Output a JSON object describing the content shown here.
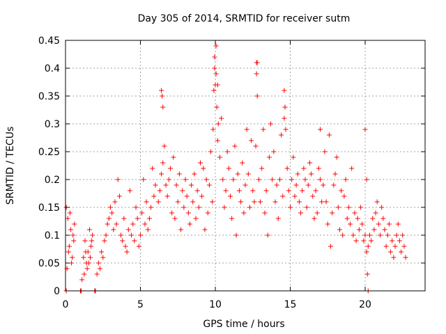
{
  "chart_data": {
    "type": "scatter",
    "title": "Day 305 of 2014, SRMTID for receiver sutm",
    "xlabel": "GPS time / hours",
    "ylabel": "SRMTID / TECUs",
    "xlim": [
      0,
      24
    ],
    "ylim": [
      0,
      0.45
    ],
    "xticks": [
      0,
      5,
      10,
      15,
      20
    ],
    "yticks": [
      0,
      0.05,
      0.1,
      0.15,
      0.2,
      0.25,
      0.3,
      0.35,
      0.4,
      0.45
    ],
    "xtick_labels": [
      "0",
      "5",
      "10",
      "15",
      "20"
    ],
    "ytick_labels": [
      "0",
      "0.05",
      "0.1",
      "0.15",
      "0.2",
      "0.25",
      "0.3",
      "0.35",
      "0.4",
      "0.45"
    ],
    "grid": true,
    "marker": "+",
    "marker_color": "#ff0000",
    "grid_color": "#a0a0a0",
    "series": [
      {
        "name": "SRMTID",
        "x": [
          0.05,
          0.15,
          0.25,
          0.35,
          0.45,
          0.55,
          0.1,
          0.3,
          0.5,
          0.6,
          0.2,
          0.4,
          1.1,
          1.2,
          1.3,
          1.4,
          1.5,
          1.6,
          1.7,
          1.8,
          1.25,
          1.45,
          1.65,
          1.75,
          1.35,
          1.55,
          2.1,
          2.2,
          2.3,
          2.4,
          2.5,
          2.6,
          2.7,
          2.8,
          2.9,
          3.0,
          3.1,
          3.2,
          3.3,
          3.4,
          3.5,
          3.6,
          3.7,
          3.8,
          3.9,
          4.0,
          4.1,
          4.2,
          4.3,
          4.4,
          4.5,
          4.6,
          4.7,
          4.8,
          4.9,
          5.0,
          5.1,
          5.2,
          5.3,
          5.4,
          5.5,
          5.6,
          5.7,
          5.8,
          5.9,
          6.0,
          6.2,
          6.3,
          6.4,
          6.5,
          6.6,
          6.7,
          6.8,
          6.9,
          7.0,
          7.1,
          7.2,
          7.3,
          7.4,
          7.5,
          7.6,
          7.7,
          7.8,
          7.9,
          8.0,
          8.1,
          8.2,
          8.3,
          8.4,
          8.5,
          8.6,
          8.7,
          8.8,
          8.9,
          9.0,
          9.1,
          9.2,
          9.3,
          9.4,
          9.5,
          9.6,
          9.7,
          9.8,
          9.85,
          9.9,
          9.95,
          10.0,
          10.05,
          10.1,
          10.15,
          10.2,
          10.3,
          10.4,
          10.5,
          10.6,
          10.7,
          10.8,
          10.9,
          11.0,
          11.1,
          11.2,
          11.3,
          11.4,
          11.5,
          11.6,
          11.7,
          11.8,
          11.9,
          12.0,
          12.1,
          12.2,
          12.3,
          12.4,
          12.5,
          12.6,
          12.7,
          12.75,
          12.8,
          12.9,
          13.0,
          13.1,
          13.2,
          13.3,
          13.4,
          13.5,
          13.6,
          13.7,
          13.8,
          13.9,
          14.0,
          14.1,
          14.2,
          14.3,
          14.4,
          14.5,
          14.6,
          14.65,
          14.7,
          14.8,
          14.9,
          15.0,
          15.1,
          15.2,
          15.3,
          15.4,
          15.5,
          15.6,
          15.7,
          15.8,
          15.9,
          16.0,
          16.1,
          16.2,
          16.3,
          16.4,
          16.5,
          16.6,
          16.7,
          16.8,
          16.9,
          17.0,
          17.1,
          17.2,
          17.3,
          17.4,
          17.5,
          17.6,
          17.7,
          17.8,
          17.9,
          18.0,
          18.1,
          18.2,
          18.3,
          18.4,
          18.5,
          18.6,
          18.7,
          18.8,
          18.9,
          19.0,
          19.1,
          19.2,
          19.3,
          19.4,
          19.5,
          19.6,
          19.7,
          19.8,
          19.9,
          20.0,
          20.1,
          20.2,
          20.3,
          20.4,
          20.5,
          20.6,
          20.7,
          20.8,
          20.9,
          21.0,
          21.1,
          21.2,
          21.3,
          21.4,
          21.5,
          21.6,
          21.7,
          21.8,
          21.9,
          22.0,
          22.1,
          22.2,
          22.3,
          22.4,
          22.5,
          22.6,
          22.7,
          6.4,
          6.5,
          6.45,
          9.95,
          10.05,
          10.15,
          12.75,
          12.8,
          14.6,
          14.65,
          17.0,
          20.0,
          20.1,
          20.15,
          20.2,
          0.05,
          1.0,
          1.05,
          1.95,
          2.0
        ],
        "y": [
          0.15,
          0.13,
          0.08,
          0.11,
          0.06,
          0.09,
          0.04,
          0.14,
          0.1,
          0.12,
          0.07,
          0.05,
          0.02,
          0.06,
          0.09,
          0.05,
          0.07,
          0.11,
          0.08,
          0.1,
          0.03,
          0.04,
          0.06,
          0.09,
          0.07,
          0.05,
          0.03,
          0.05,
          0.04,
          0.07,
          0.06,
          0.09,
          0.1,
          0.12,
          0.13,
          0.15,
          0.14,
          0.11,
          0.16,
          0.12,
          0.2,
          0.17,
          0.1,
          0.09,
          0.13,
          0.08,
          0.07,
          0.11,
          0.18,
          0.1,
          0.12,
          0.09,
          0.15,
          0.13,
          0.08,
          0.1,
          0.14,
          0.2,
          0.12,
          0.16,
          0.11,
          0.13,
          0.15,
          0.22,
          0.17,
          0.19,
          0.16,
          0.18,
          0.21,
          0.23,
          0.26,
          0.19,
          0.17,
          0.2,
          0.22,
          0.14,
          0.24,
          0.13,
          0.19,
          0.16,
          0.21,
          0.11,
          0.18,
          0.15,
          0.2,
          0.17,
          0.14,
          0.12,
          0.19,
          0.16,
          0.21,
          0.13,
          0.18,
          0.15,
          0.23,
          0.17,
          0.22,
          0.11,
          0.2,
          0.14,
          0.19,
          0.25,
          0.16,
          0.29,
          0.36,
          0.4,
          0.37,
          0.44,
          0.33,
          0.27,
          0.3,
          0.24,
          0.31,
          0.2,
          0.15,
          0.18,
          0.25,
          0.22,
          0.17,
          0.13,
          0.2,
          0.26,
          0.1,
          0.21,
          0.18,
          0.16,
          0.23,
          0.14,
          0.19,
          0.29,
          0.21,
          0.15,
          0.27,
          0.18,
          0.16,
          0.26,
          0.41,
          0.35,
          0.2,
          0.16,
          0.22,
          0.29,
          0.14,
          0.18,
          0.1,
          0.24,
          0.3,
          0.2,
          0.25,
          0.16,
          0.19,
          0.13,
          0.2,
          0.28,
          0.17,
          0.36,
          0.33,
          0.29,
          0.22,
          0.18,
          0.15,
          0.2,
          0.24,
          0.17,
          0.19,
          0.21,
          0.16,
          0.14,
          0.18,
          0.22,
          0.2,
          0.15,
          0.19,
          0.23,
          0.21,
          0.17,
          0.13,
          0.18,
          0.14,
          0.22,
          0.2,
          0.16,
          0.19,
          0.25,
          0.16,
          0.12,
          0.28,
          0.08,
          0.14,
          0.19,
          0.21,
          0.24,
          0.15,
          0.11,
          0.18,
          0.1,
          0.17,
          0.2,
          0.13,
          0.15,
          0.12,
          0.22,
          0.1,
          0.14,
          0.09,
          0.13,
          0.11,
          0.15,
          0.12,
          0.09,
          0.1,
          0.07,
          0.08,
          0.1,
          0.09,
          0.13,
          0.11,
          0.14,
          0.16,
          0.12,
          0.1,
          0.15,
          0.13,
          0.11,
          0.08,
          0.1,
          0.12,
          0.07,
          0.09,
          0.06,
          0.08,
          0.1,
          0.12,
          0.09,
          0.07,
          0.1,
          0.08,
          0.06,
          0.36,
          0.33,
          0.35,
          0.42,
          0.39,
          0.37,
          0.39,
          0.41,
          0.31,
          0.33,
          0.29,
          0.29,
          0.2,
          0.03,
          0.0,
          0.0,
          0.0,
          0.0,
          0.0,
          0.0
        ]
      }
    ]
  }
}
